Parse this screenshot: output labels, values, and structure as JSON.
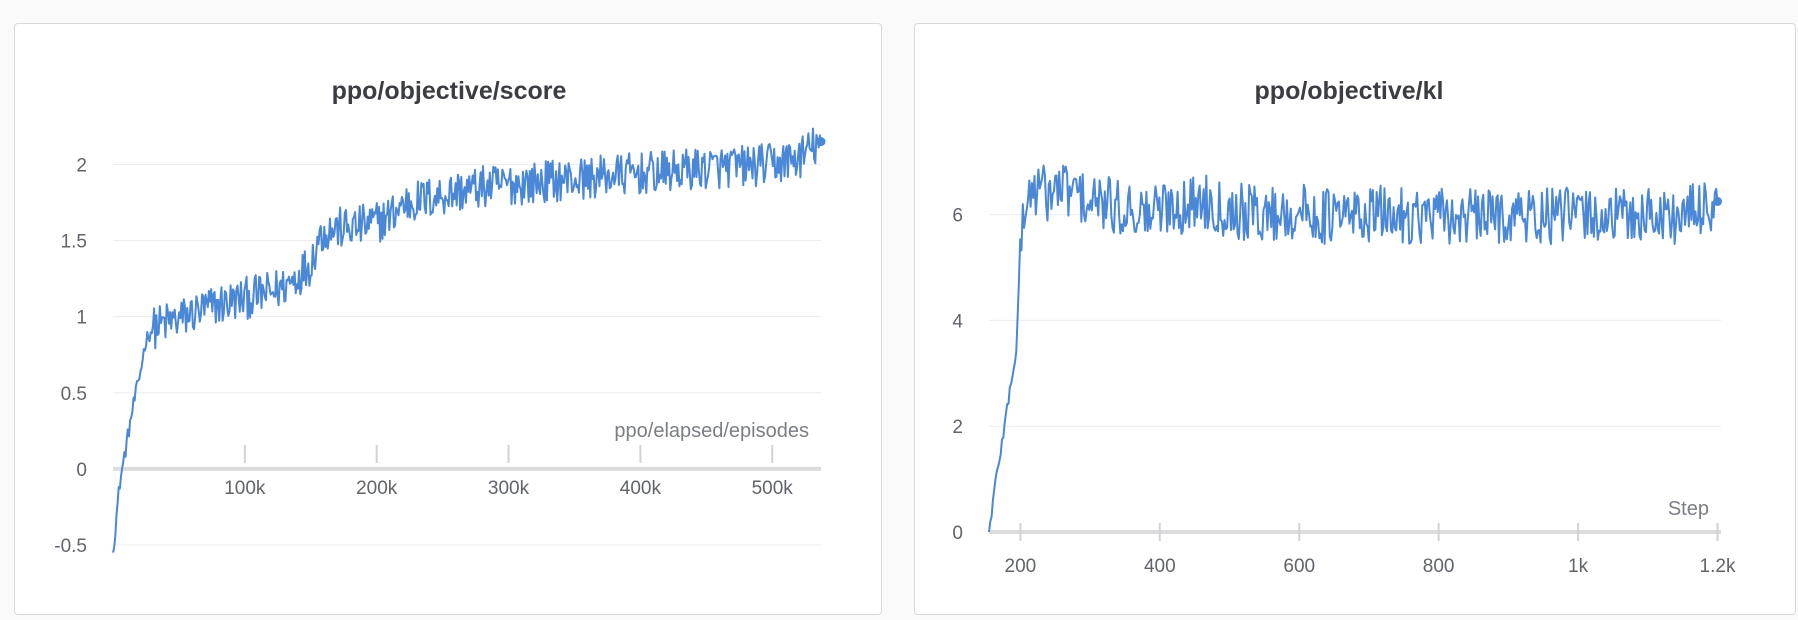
{
  "chart_data": [
    {
      "type": "line",
      "title": "ppo/objective/score",
      "xlabel": "ppo/elapsed/episodes",
      "ylabel": "",
      "xlim": [
        0,
        537000
      ],
      "ylim": [
        -0.5,
        2.2
      ],
      "y_ticks": [
        -0.5,
        0,
        0.5,
        1,
        1.5,
        2
      ],
      "y_tick_labels": [
        "-0.5",
        "0",
        "0.5",
        "1",
        "1.5",
        "2"
      ],
      "x_ticks": [
        100000,
        200000,
        300000,
        400000,
        500000
      ],
      "x_tick_labels": [
        "100k",
        "200k",
        "300k",
        "400k",
        "500k"
      ],
      "grid": true,
      "series": [
        {
          "color": "#4a87d6",
          "x": [
            0,
            5000,
            10000,
            15000,
            20000,
            25000,
            30000,
            40000,
            50000,
            60000,
            70000,
            80000,
            90000,
            100000,
            110000,
            120000,
            130000,
            140000,
            150000,
            155000,
            160000,
            170000,
            180000,
            190000,
            200000,
            210000,
            220000,
            230000,
            240000,
            250000,
            260000,
            280000,
            300000,
            320000,
            340000,
            360000,
            380000,
            400000,
            420000,
            440000,
            460000,
            480000,
            500000,
            520000,
            537000
          ],
          "y": [
            -0.55,
            -0.1,
            0.15,
            0.4,
            0.6,
            0.85,
            0.92,
            0.96,
            0.98,
            1.02,
            1.05,
            1.08,
            1.1,
            1.12,
            1.14,
            1.16,
            1.2,
            1.27,
            1.35,
            1.5,
            1.56,
            1.58,
            1.58,
            1.6,
            1.62,
            1.66,
            1.74,
            1.76,
            1.78,
            1.8,
            1.82,
            1.85,
            1.87,
            1.88,
            1.9,
            1.91,
            1.93,
            1.94,
            1.95,
            1.97,
            1.98,
            1.99,
            2.0,
            2.04,
            2.15
          ]
        }
      ]
    },
    {
      "type": "line",
      "title": "ppo/objective/kl",
      "xlabel": "Step",
      "ylabel": "",
      "xlim": [
        155,
        1205
      ],
      "ylim": [
        0,
        7.6
      ],
      "y_ticks": [
        0,
        2,
        4,
        6
      ],
      "y_tick_labels": [
        "0",
        "2",
        "4",
        "6"
      ],
      "x_ticks": [
        200,
        400,
        600,
        800,
        1000,
        1200
      ],
      "x_tick_labels": [
        "200",
        "400",
        "600",
        "800",
        "1k",
        "1.2k"
      ],
      "grid": true,
      "series": [
        {
          "color": "#4a87d6",
          "x": [
            155,
            165,
            175,
            185,
            195,
            200,
            210,
            220,
            240,
            260,
            280,
            300,
            320,
            340,
            360,
            380,
            400,
            420,
            440,
            460,
            480,
            500,
            550,
            600,
            650,
            700,
            750,
            800,
            850,
            900,
            950,
            1000,
            1050,
            1100,
            1150,
            1200
          ],
          "y": [
            0,
            1.0,
            1.8,
            2.7,
            3.5,
            5.6,
            6.3,
            6.5,
            6.4,
            6.5,
            6.4,
            6.2,
            6.2,
            6.1,
            6.15,
            6.0,
            6.1,
            6.2,
            6.15,
            6.3,
            6.2,
            6.1,
            6.0,
            6.05,
            5.95,
            6.0,
            6.0,
            5.95,
            5.95,
            6.0,
            5.95,
            6.0,
            5.95,
            6.0,
            5.95,
            6.25
          ]
        }
      ]
    }
  ]
}
